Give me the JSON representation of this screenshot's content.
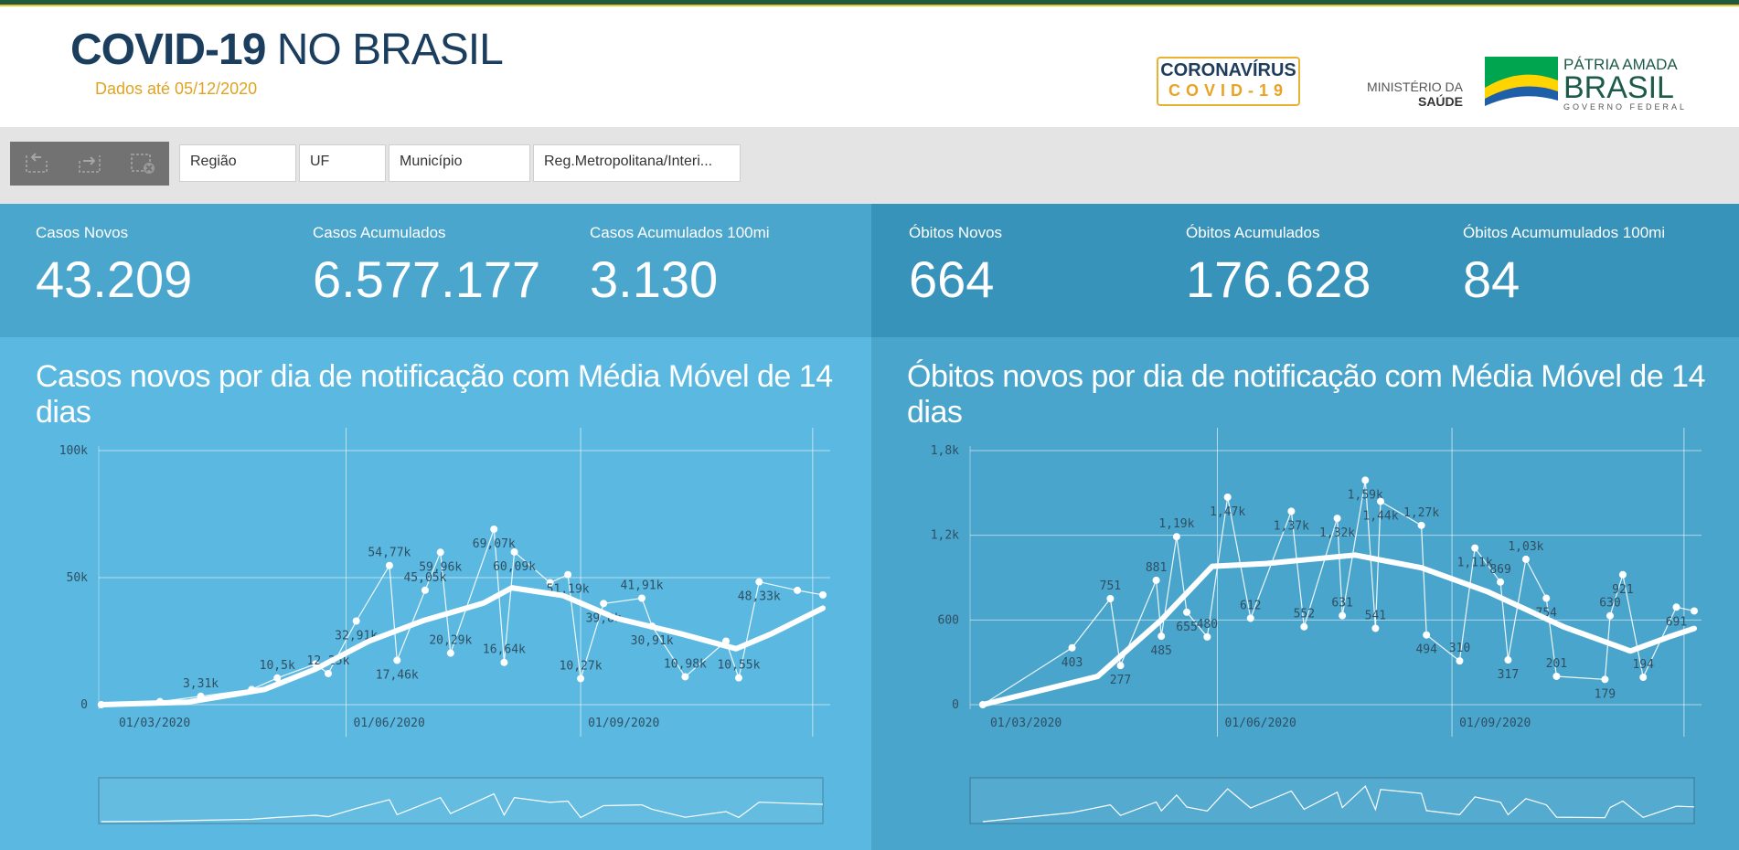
{
  "header": {
    "title_bold": "COVID-19",
    "title_light": " NO BRASIL",
    "subtitle": "Dados até 05/12/2020",
    "logo_line1": "CORONAVÍRUS",
    "logo_line2": "COVID-19",
    "ministerio_line1": "MINISTÉRIO DA",
    "ministerio_line2": "SAÚDE",
    "patria_line1": "PÁTRIA AMADA",
    "patria_line2": "BRASIL",
    "patria_line3": "GOVERNO FEDERAL"
  },
  "filters": [
    {
      "label": "Região"
    },
    {
      "label": "UF"
    },
    {
      "label": "Município"
    },
    {
      "label": "Reg.Metropolitana/Interi..."
    }
  ],
  "toolbar": {
    "icons": [
      "undo-icon",
      "redo-icon",
      "clear-selection-icon"
    ]
  },
  "stats": {
    "casos_novos": {
      "label": "Casos Novos",
      "value": "43.209"
    },
    "casos_acumulados": {
      "label": "Casos Acumulados",
      "value": "6.577.177"
    },
    "casos_100mi": {
      "label": "Casos Acumulados 100mi",
      "value": "3.130"
    },
    "obitos_novos": {
      "label": "Óbitos Novos",
      "value": "664"
    },
    "obitos_acumulados": {
      "label": "Óbitos Acumulados",
      "value": "176.628"
    },
    "obitos_100mi": {
      "label": "Óbitos Acumumulados 100mi",
      "value": "84"
    }
  },
  "colors": {
    "panel_left": "#5bb8e0",
    "panel_right": "#4aa5cc",
    "accent": "#e0a322",
    "title": "#1b3d5e"
  },
  "chart_data": [
    {
      "type": "line",
      "title": "Casos novos por dia de notificação com Média Móvel de 14 dias",
      "x_tick_labels": [
        "01/03/2020",
        "01/06/2020",
        "01/09/2020"
      ],
      "y_tick_labels": [
        "0",
        "50k",
        "100k"
      ],
      "ylim": [
        0,
        100000
      ],
      "x_range": [
        "2020-02-25",
        "2020-12-05"
      ],
      "grid": true,
      "series": [
        {
          "name": "Casos novos",
          "points": [
            {
              "date": "2020-02-26",
              "v": 0
            },
            {
              "date": "2020-03-20",
              "v": 1200
            },
            {
              "date": "2020-04-05",
              "v": 3310,
              "label": "3,31k"
            },
            {
              "date": "2020-04-25",
              "v": 6000
            },
            {
              "date": "2020-05-05",
              "v": 10500,
              "label": "10,5k"
            },
            {
              "date": "2020-05-20",
              "v": 16000
            },
            {
              "date": "2020-05-25",
              "v": 12250,
              "label": "12,25k"
            },
            {
              "date": "2020-06-05",
              "v": 32910,
              "label": "32,91k"
            },
            {
              "date": "2020-06-18",
              "v": 54770,
              "label": "54,77k"
            },
            {
              "date": "2020-06-21",
              "v": 17460,
              "label": "17,46k"
            },
            {
              "date": "2020-07-02",
              "v": 45050,
              "label": "45,05k"
            },
            {
              "date": "2020-07-08",
              "v": 59960,
              "label": "59,96k"
            },
            {
              "date": "2020-07-12",
              "v": 20290,
              "label": "20,29k"
            },
            {
              "date": "2020-07-29",
              "v": 69070,
              "label": "69,07k"
            },
            {
              "date": "2020-08-02",
              "v": 16640,
              "label": "16,64k"
            },
            {
              "date": "2020-08-06",
              "v": 60090,
              "label": "60,09k"
            },
            {
              "date": "2020-08-20",
              "v": 48000
            },
            {
              "date": "2020-08-27",
              "v": 51190,
              "label": "51,19k"
            },
            {
              "date": "2020-09-01",
              "v": 10270,
              "label": "10,27k"
            },
            {
              "date": "2020-09-10",
              "v": 39800,
              "label": "39,8k"
            },
            {
              "date": "2020-09-25",
              "v": 41910,
              "label": "41,91k"
            },
            {
              "date": "2020-09-29",
              "v": 30910,
              "label": "30,91k"
            },
            {
              "date": "2020-10-12",
              "v": 10980,
              "label": "10,98k"
            },
            {
              "date": "2020-10-28",
              "v": 25000
            },
            {
              "date": "2020-11-02",
              "v": 10550,
              "label": "10,55k"
            },
            {
              "date": "2020-11-10",
              "v": 48330,
              "label": "48,33k"
            },
            {
              "date": "2020-11-25",
              "v": 45000
            },
            {
              "date": "2020-12-05",
              "v": 43209
            }
          ]
        },
        {
          "name": "Média Móvel de 14 dias",
          "points": [
            {
              "date": "2020-02-26",
              "v": 0
            },
            {
              "date": "2020-03-31",
              "v": 1000
            },
            {
              "date": "2020-04-30",
              "v": 6000
            },
            {
              "date": "2020-05-20",
              "v": 14000
            },
            {
              "date": "2020-06-10",
              "v": 25000
            },
            {
              "date": "2020-07-01",
              "v": 33000
            },
            {
              "date": "2020-07-25",
              "v": 40000
            },
            {
              "date": "2020-08-05",
              "v": 46000
            },
            {
              "date": "2020-08-25",
              "v": 43000
            },
            {
              "date": "2020-09-15",
              "v": 34000
            },
            {
              "date": "2020-10-10",
              "v": 28000
            },
            {
              "date": "2020-11-01",
              "v": 22000
            },
            {
              "date": "2020-11-15",
              "v": 28000
            },
            {
              "date": "2020-12-05",
              "v": 38000
            }
          ]
        }
      ]
    },
    {
      "type": "line",
      "title": "Óbitos novos por dia de notificação com Média Móvel de 14 dias",
      "x_tick_labels": [
        "01/03/2020",
        "01/06/2020",
        "01/09/2020"
      ],
      "y_tick_labels": [
        "0",
        "600",
        "1,2k",
        "1,8k"
      ],
      "ylim": [
        0,
        1800
      ],
      "x_range": [
        "2020-02-25",
        "2020-12-05"
      ],
      "grid": true,
      "series": [
        {
          "name": "Óbitos novos",
          "points": [
            {
              "date": "2020-03-01",
              "v": 0
            },
            {
              "date": "2020-04-05",
              "v": 403,
              "label": "403"
            },
            {
              "date": "2020-04-20",
              "v": 751,
              "label": "751"
            },
            {
              "date": "2020-04-24",
              "v": 277,
              "label": "277"
            },
            {
              "date": "2020-05-08",
              "v": 881,
              "label": "881"
            },
            {
              "date": "2020-05-10",
              "v": 485,
              "label": "485"
            },
            {
              "date": "2020-05-16",
              "v": 1190,
              "label": "1,19k"
            },
            {
              "date": "2020-05-20",
              "v": 655,
              "label": "655"
            },
            {
              "date": "2020-05-28",
              "v": 480,
              "label": "480"
            },
            {
              "date": "2020-06-05",
              "v": 1470,
              "label": "1,47k"
            },
            {
              "date": "2020-06-14",
              "v": 612,
              "label": "612"
            },
            {
              "date": "2020-06-30",
              "v": 1370,
              "label": "1,37k"
            },
            {
              "date": "2020-07-05",
              "v": 552,
              "label": "552"
            },
            {
              "date": "2020-07-18",
              "v": 1320,
              "label": "1,32k"
            },
            {
              "date": "2020-07-20",
              "v": 631,
              "label": "631"
            },
            {
              "date": "2020-07-29",
              "v": 1590,
              "label": "1,59k"
            },
            {
              "date": "2020-08-02",
              "v": 541,
              "label": "541"
            },
            {
              "date": "2020-08-04",
              "v": 1440,
              "label": "1,44k"
            },
            {
              "date": "2020-08-20",
              "v": 1270,
              "label": "1,27k"
            },
            {
              "date": "2020-08-22",
              "v": 494,
              "label": "494"
            },
            {
              "date": "2020-09-04",
              "v": 310,
              "label": "310"
            },
            {
              "date": "2020-09-10",
              "v": 1110,
              "label": "1,11k"
            },
            {
              "date": "2020-09-20",
              "v": 869,
              "label": "869"
            },
            {
              "date": "2020-09-23",
              "v": 317,
              "label": "317"
            },
            {
              "date": "2020-09-30",
              "v": 1030,
              "label": "1,03k"
            },
            {
              "date": "2020-10-08",
              "v": 754,
              "label": "754"
            },
            {
              "date": "2020-10-12",
              "v": 201,
              "label": "201"
            },
            {
              "date": "2020-10-31",
              "v": 179,
              "label": "179"
            },
            {
              "date": "2020-11-02",
              "v": 630,
              "label": "630"
            },
            {
              "date": "2020-11-07",
              "v": 921,
              "label": "921"
            },
            {
              "date": "2020-11-15",
              "v": 194,
              "label": "194"
            },
            {
              "date": "2020-11-28",
              "v": 691,
              "label": "691"
            },
            {
              "date": "2020-12-05",
              "v": 664
            }
          ]
        },
        {
          "name": "Média Móvel de 14 dias",
          "points": [
            {
              "date": "2020-03-01",
              "v": 0
            },
            {
              "date": "2020-04-15",
              "v": 200
            },
            {
              "date": "2020-05-10",
              "v": 600
            },
            {
              "date": "2020-05-30",
              "v": 980
            },
            {
              "date": "2020-06-20",
              "v": 1000
            },
            {
              "date": "2020-07-25",
              "v": 1060
            },
            {
              "date": "2020-08-20",
              "v": 970
            },
            {
              "date": "2020-09-15",
              "v": 800
            },
            {
              "date": "2020-10-15",
              "v": 550
            },
            {
              "date": "2020-11-10",
              "v": 380
            },
            {
              "date": "2020-11-25",
              "v": 480
            },
            {
              "date": "2020-12-05",
              "v": 540
            }
          ]
        }
      ]
    }
  ]
}
